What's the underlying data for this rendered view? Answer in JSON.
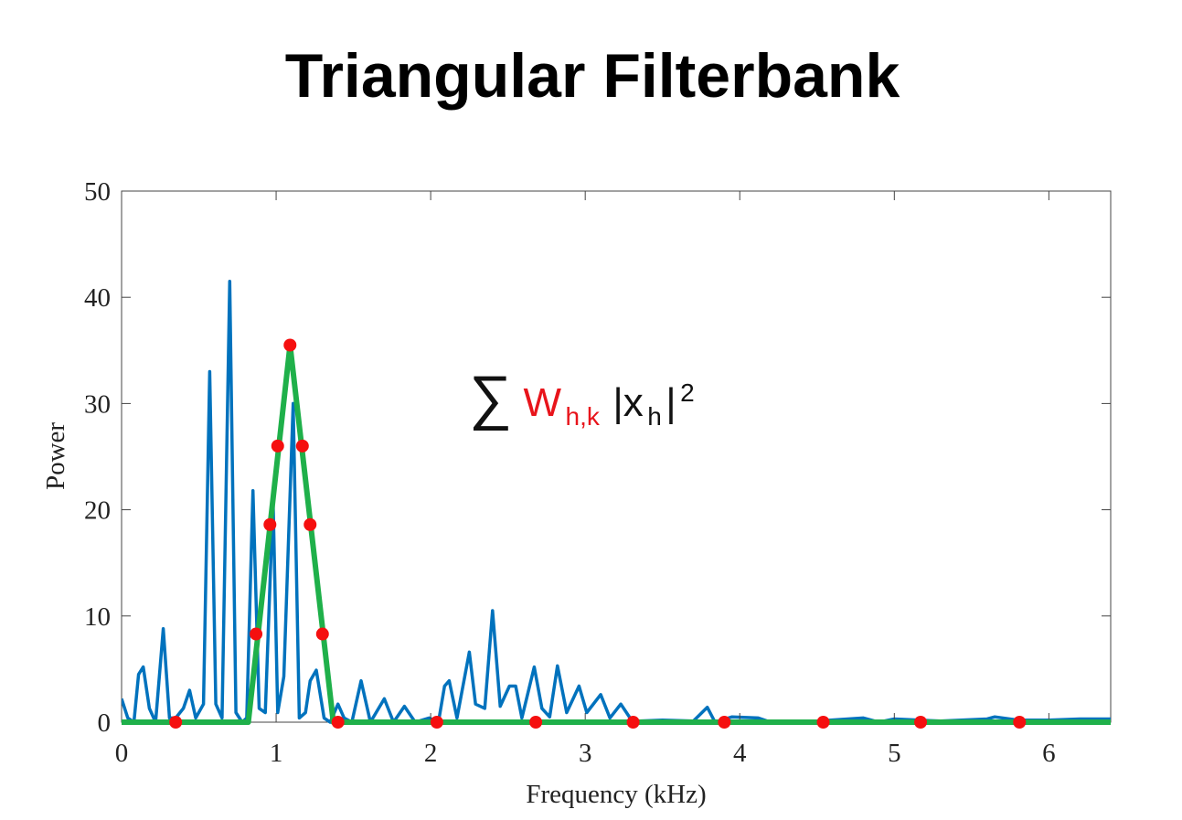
{
  "chart_data": {
    "type": "line",
    "title": "Triangular Filterbank",
    "x_label": "Frequency (kHz)",
    "y_label": "Power",
    "xlim": [
      0,
      6.4
    ],
    "ylim": [
      0,
      50
    ],
    "xticks": [
      0,
      1,
      2,
      3,
      4,
      5,
      6
    ],
    "yticks": [
      0,
      10,
      20,
      30,
      40,
      50
    ],
    "grid": false,
    "annotation": {
      "symbol": "∑",
      "weight": "W",
      "weight_subscript": "h,k",
      "term": "|x",
      "term_subscript": "h",
      "term_close": "|",
      "exponent": "2",
      "weight_color": "#e8141b",
      "color": "#111111"
    },
    "series": [
      {
        "mode": "line",
        "color": "#0072bd",
        "x": [
          0,
          0.04,
          0.08,
          0.11,
          0.14,
          0.18,
          0.22,
          0.27,
          0.31,
          0.35,
          0.4,
          0.44,
          0.48,
          0.53,
          0.57,
          0.61,
          0.65,
          0.7,
          0.74,
          0.78,
          0.81,
          0.85,
          0.89,
          0.93,
          0.98,
          1.01,
          1.05,
          1.11,
          1.15,
          1.19,
          1.22,
          1.26,
          1.31,
          1.35,
          1.4,
          1.44,
          1.49,
          1.55,
          1.61,
          1.7,
          1.76,
          1.83,
          1.9,
          1.99,
          2.05,
          2.09,
          2.12,
          2.17,
          2.25,
          2.29,
          2.35,
          2.4,
          2.45,
          2.51,
          2.55,
          2.59,
          2.67,
          2.72,
          2.77,
          2.82,
          2.88,
          2.96,
          3.01,
          3.1,
          3.16,
          3.23,
          3.29,
          3.35,
          3.5,
          3.7,
          3.79,
          3.84,
          3.95,
          4.12,
          4.2,
          4.5,
          4.8,
          4.9,
          5.0,
          5.3,
          5.6,
          5.65,
          5.8,
          6.0,
          6.2,
          6.4
        ],
        "values": [
          2.2,
          0.4,
          0,
          4.5,
          5.2,
          1.3,
          0,
          8.8,
          0.4,
          0.4,
          1.3,
          3,
          0.4,
          1.7,
          33,
          1.7,
          0.4,
          41.5,
          0.9,
          0,
          0.4,
          21.8,
          1.3,
          0.9,
          21,
          0.9,
          4.3,
          30,
          0.4,
          0.9,
          3.9,
          4.9,
          0.4,
          0,
          1.7,
          0.4,
          0,
          3.9,
          0,
          2.2,
          0,
          1.5,
          0,
          0.4,
          0,
          3.4,
          3.9,
          0.4,
          6.6,
          1.7,
          1.3,
          10.5,
          1.5,
          3.4,
          3.4,
          0.4,
          5.2,
          1.3,
          0.5,
          5.3,
          0.9,
          3.4,
          0.9,
          2.6,
          0.4,
          1.7,
          0.4,
          0.1,
          0.2,
          0.1,
          1.4,
          0,
          0.5,
          0.4,
          0,
          0.1,
          0.4,
          0,
          0.3,
          0.1,
          0.3,
          0.5,
          0.2,
          0.2,
          0.3,
          0.3
        ]
      },
      {
        "mode": "line",
        "color": "#1fb04a",
        "x": [
          0,
          0.82,
          1.09,
          1.37,
          6.4
        ],
        "values": [
          0,
          0,
          35.5,
          0,
          0
        ]
      },
      {
        "mode": "markers",
        "color": "#f50f0f",
        "x": [
          0.35,
          0.87,
          0.96,
          1.01,
          1.09,
          1.17,
          1.22,
          1.3,
          1.4,
          2.04,
          2.68,
          3.31,
          3.9,
          4.54,
          5.17,
          5.81
        ],
        "values": [
          0,
          8.3,
          18.6,
          26,
          35.5,
          26,
          18.6,
          8.3,
          0,
          0,
          0,
          0,
          0,
          0,
          0,
          0
        ]
      }
    ]
  }
}
